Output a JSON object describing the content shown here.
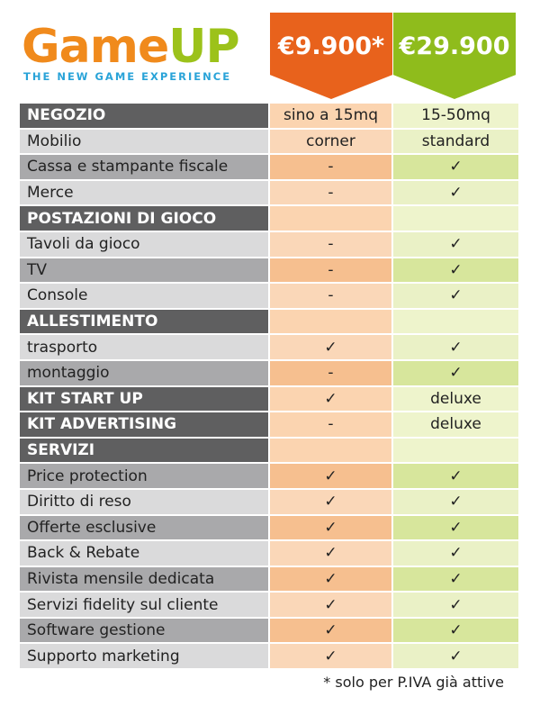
{
  "logo": {
    "game": "Game",
    "up": "UP",
    "tagline": "THE NEW GAME EXPERIENCE"
  },
  "plans": [
    {
      "price": "€9.900*"
    },
    {
      "price": "€29.900"
    }
  ],
  "table": {
    "rows": [
      {
        "label": "NEGOZIO",
        "header": true,
        "cells": [
          "sino a 15mq",
          "15-50mq"
        ]
      },
      {
        "label": "Mobilio",
        "cells": [
          "corner",
          "standard"
        ]
      },
      {
        "label": "Cassa e stampante fiscale",
        "cells": [
          "-",
          "✓"
        ]
      },
      {
        "label": "Merce",
        "cells": [
          "-",
          "✓"
        ]
      },
      {
        "label": "POSTAZIONI DI GIOCO",
        "header": true,
        "cells": []
      },
      {
        "label": "Tavoli da gioco",
        "cells": [
          "-",
          "✓"
        ]
      },
      {
        "label": "TV",
        "cells": [
          "-",
          "✓"
        ]
      },
      {
        "label": "Console",
        "cells": [
          "-",
          "✓"
        ]
      },
      {
        "label": "ALLESTIMENTO",
        "header": true,
        "cells": []
      },
      {
        "label": "trasporto",
        "cells": [
          "✓",
          "✓"
        ]
      },
      {
        "label": "montaggio",
        "cells": [
          "-",
          "✓"
        ]
      },
      {
        "label": "KIT START UP",
        "header": true,
        "cells": [
          "✓",
          "deluxe"
        ]
      },
      {
        "label": "KIT ADVERTISING",
        "header": true,
        "cells": [
          "-",
          "deluxe"
        ]
      },
      {
        "label": "SERVIZI",
        "header": true,
        "cells": []
      },
      {
        "label": "Price protection",
        "cells": [
          "✓",
          "✓"
        ]
      },
      {
        "label": "Diritto di reso",
        "cells": [
          "✓",
          "✓"
        ]
      },
      {
        "label": "Offerte esclusive",
        "cells": [
          "✓",
          "✓"
        ]
      },
      {
        "label": "Back & Rebate",
        "cells": [
          "✓",
          "✓"
        ]
      },
      {
        "label": "Rivista mensile dedicata",
        "cells": [
          "✓",
          "✓"
        ]
      },
      {
        "label": "Servizi fidelity sul cliente",
        "cells": [
          "✓",
          "✓"
        ]
      },
      {
        "label": "Software gestione",
        "cells": [
          "✓",
          "✓"
        ]
      },
      {
        "label": "Supporto marketing",
        "cells": [
          "✓",
          "✓"
        ]
      }
    ]
  },
  "footnote": "* solo per P.IVA già attive"
}
